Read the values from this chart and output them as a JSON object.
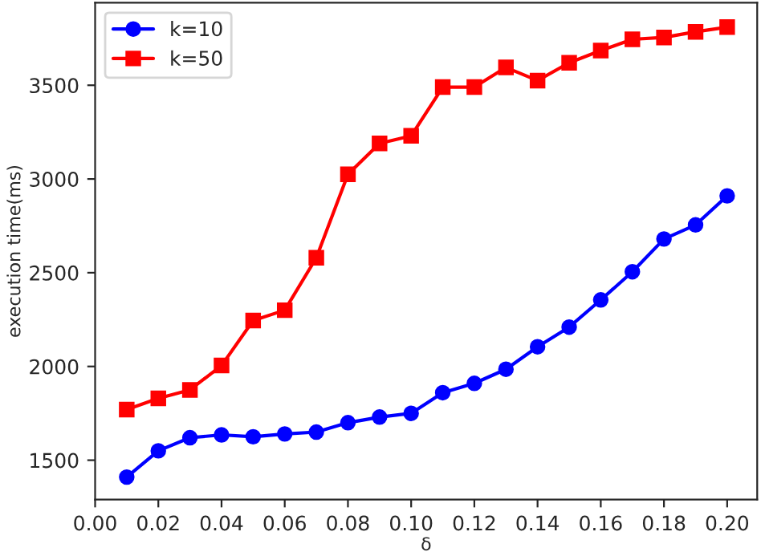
{
  "chart_data": {
    "type": "line",
    "xlabel": "δ",
    "ylabel": "execution time(ms)",
    "x": [
      0.01,
      0.02,
      0.03,
      0.04,
      0.05,
      0.06,
      0.07,
      0.08,
      0.09,
      0.1,
      0.11,
      0.12,
      0.13,
      0.14,
      0.15,
      0.16,
      0.17,
      0.18,
      0.19,
      0.2
    ],
    "series": [
      {
        "name": "k=10",
        "color": "#0000ff",
        "marker": "circle",
        "values": [
          1410,
          1550,
          1620,
          1635,
          1625,
          1640,
          1650,
          1700,
          1730,
          1750,
          1860,
          1910,
          1985,
          2105,
          2210,
          2355,
          2505,
          2680,
          2755,
          2910
        ]
      },
      {
        "name": "k=50",
        "color": "#ff0000",
        "marker": "square",
        "values": [
          1770,
          1830,
          1875,
          2005,
          2245,
          2300,
          2580,
          3025,
          3190,
          3230,
          3490,
          3490,
          3595,
          3525,
          3620,
          3685,
          3745,
          3755,
          3785,
          3810
        ]
      }
    ],
    "xlim": [
      0.0,
      0.2095
    ],
    "xticks": [
      {
        "value": 0.0,
        "label": "0.00"
      },
      {
        "value": 0.02,
        "label": "0.02"
      },
      {
        "value": 0.04,
        "label": "0.04"
      },
      {
        "value": 0.06,
        "label": "0.06"
      },
      {
        "value": 0.08,
        "label": "0.08"
      },
      {
        "value": 0.1,
        "label": "0.10"
      },
      {
        "value": 0.12,
        "label": "0.12"
      },
      {
        "value": 0.14,
        "label": "0.14"
      },
      {
        "value": 0.16,
        "label": "0.16"
      },
      {
        "value": 0.18,
        "label": "0.18"
      },
      {
        "value": 0.2,
        "label": "0.20"
      }
    ],
    "ylim": [
      1290,
      3940
    ],
    "yticks": [
      1500,
      2000,
      2500,
      3000,
      3500
    ],
    "grid": false,
    "legend": "top left",
    "line_style": "solid"
  }
}
